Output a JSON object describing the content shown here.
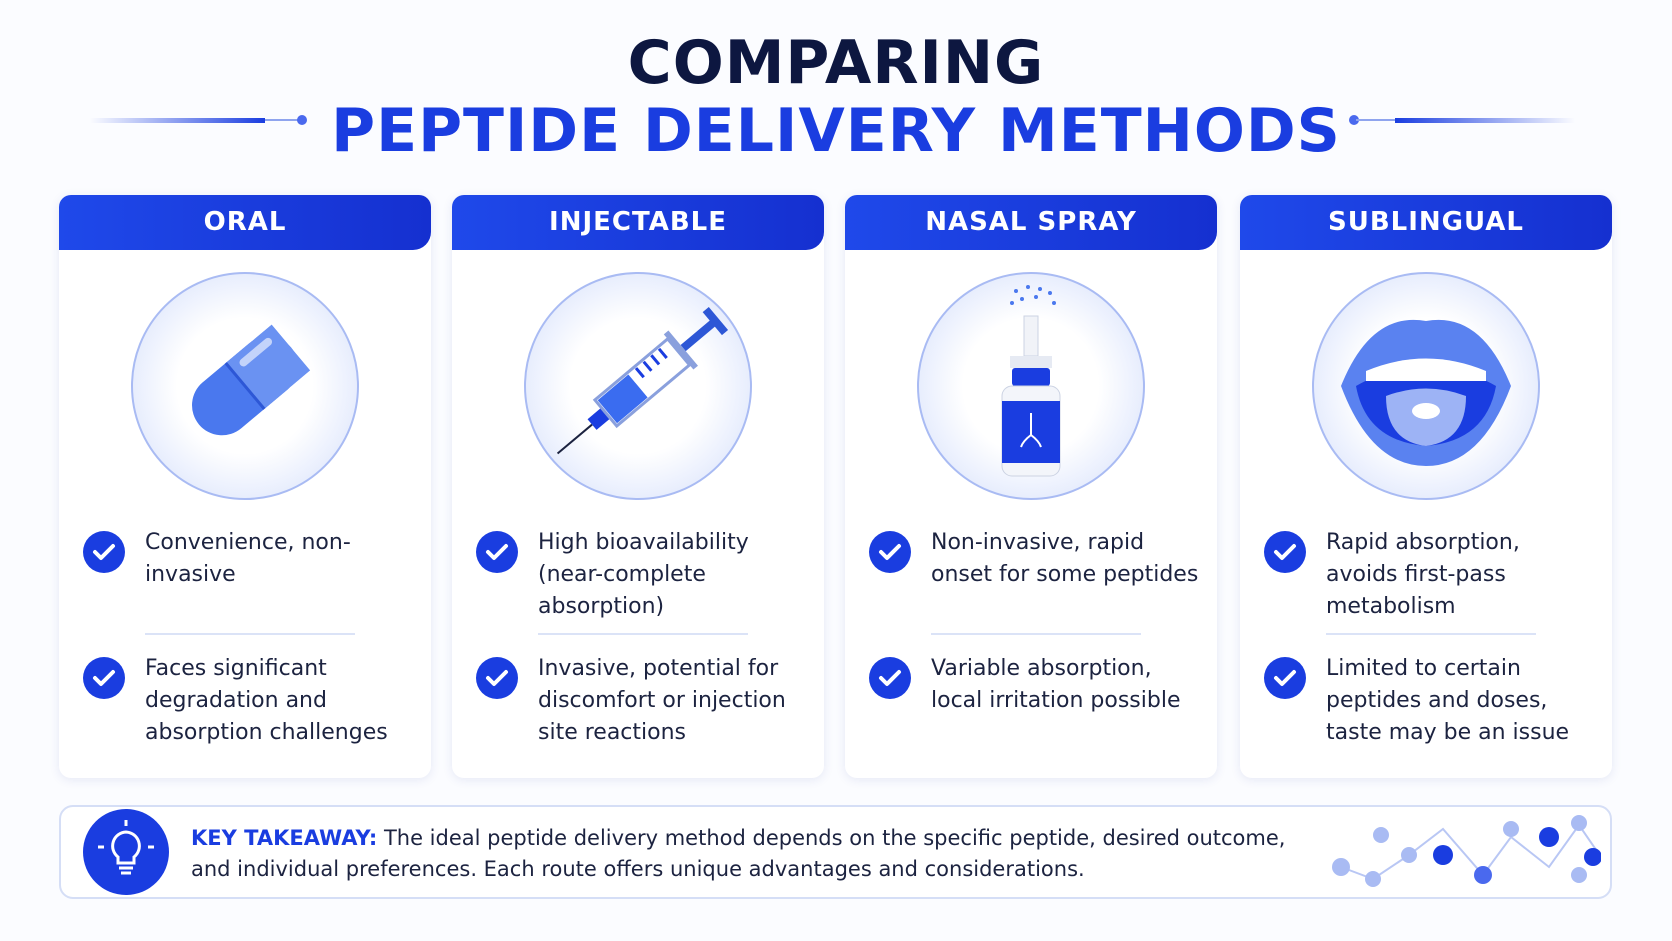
{
  "header": {
    "title_line1": "COMPARING",
    "title_line2": "PEPTIDE DELIVERY METHODS"
  },
  "cards": [
    {
      "title": "ORAL",
      "points": [
        "Convenience, non-invasive",
        "Faces significant degradation and absorption challenges"
      ]
    },
    {
      "title": "INJECTABLE",
      "points": [
        "High bioavailability (near-complete absorption)",
        "Invasive, potential for discomfort or injection site reactions"
      ]
    },
    {
      "title": "NASAL SPRAY",
      "points": [
        "Non-invasive, rapid onset for some peptides",
        "Variable absorption, local irritation possible"
      ]
    },
    {
      "title": "SUBLINGUAL",
      "points": [
        "Rapid absorption, avoids first-pass metabolism",
        "Limited to certain peptides and doses, taste may be an issue"
      ]
    }
  ],
  "takeaway": {
    "label": "KEY TAKEAWAY:",
    "text": "The ideal peptide delivery method depends on the specific peptide, desired outcome, and individual preferences. Each route offers unique advantages and considerations."
  }
}
